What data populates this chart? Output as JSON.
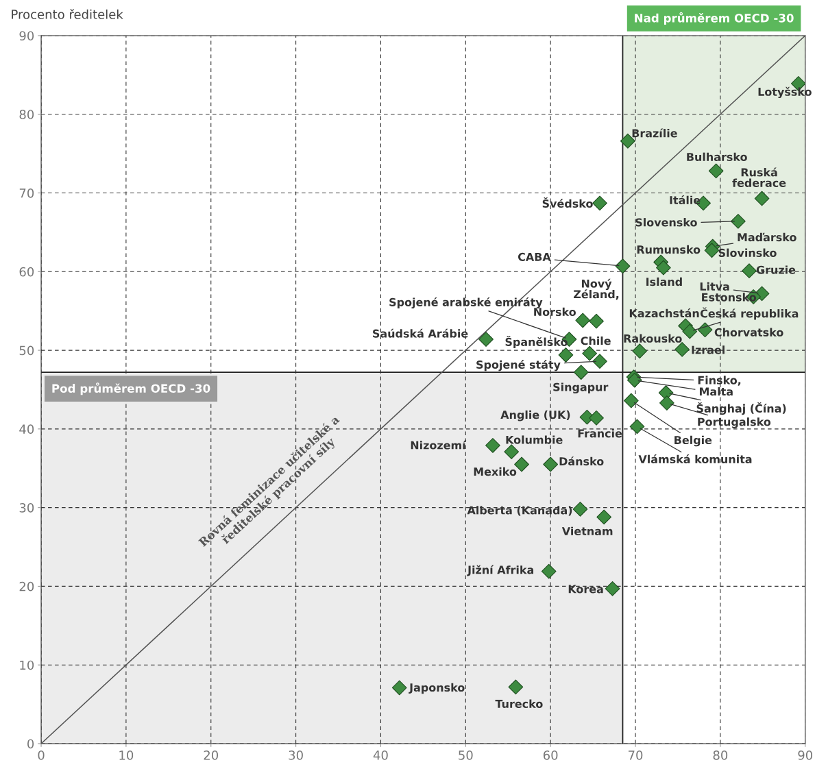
{
  "chart_data": {
    "type": "scatter",
    "ylabel": "Procento ředitelek",
    "xlim": [
      0,
      90
    ],
    "ylim": [
      0,
      90
    ],
    "xticks": [
      0,
      10,
      20,
      30,
      40,
      50,
      60,
      70,
      80,
      90
    ],
    "yticks": [
      0,
      10,
      20,
      30,
      40,
      50,
      60,
      70,
      80,
      90
    ],
    "grid": true,
    "marker": "diamond",
    "ref_lines": [
      {
        "axis": "x",
        "value": 68.5,
        "color": "#222222"
      },
      {
        "axis": "y",
        "value": 47.2,
        "color": "#222222"
      }
    ],
    "bands": [
      {
        "axis": "x",
        "from": 68.5,
        "to": 90,
        "label": "Nad průměrem OECD -30",
        "color": "#e4eee0"
      },
      {
        "axis": "y",
        "from": 0,
        "to": 47.2,
        "label": "Pod průměrem OECD -30",
        "color": "#ececec"
      }
    ],
    "series": [
      {
        "color": "#3d8b40",
        "x": [
          89.2,
          69.1,
          79.5,
          84.9,
          78.0,
          65.8,
          82.1,
          79.1,
          79.0,
          73.0,
          73.3,
          68.5,
          83.4,
          84.9,
          83.9,
          63.8,
          65.4,
          75.9,
          76.4,
          78.2,
          62.2,
          52.4,
          61.8,
          64.6,
          65.8,
          63.6,
          70.5,
          75.5,
          69.8,
          69.9,
          73.6,
          73.7,
          69.5,
          70.2,
          64.3,
          65.4,
          53.2,
          55.4,
          56.6,
          60.0,
          63.5,
          66.3,
          59.8,
          67.3,
          42.2,
          55.9
        ],
        "values": [
          83.9,
          76.6,
          72.8,
          69.3,
          68.7,
          68.7,
          66.4,
          63.2,
          62.7,
          61.2,
          60.5,
          60.7,
          60.1,
          57.2,
          56.8,
          53.8,
          53.7,
          53.1,
          52.4,
          52.6,
          51.4,
          51.4,
          49.4,
          49.6,
          48.6,
          47.2,
          49.9,
          50.1,
          46.6,
          46.2,
          44.6,
          43.3,
          43.6,
          40.3,
          41.5,
          41.4,
          37.9,
          37.1,
          35.5,
          35.5,
          29.8,
          28.8,
          21.9,
          19.7,
          7.1,
          7.2
        ]
      },
      {
        "type": "line",
        "marker": "none",
        "color": "#555555",
        "x": [
          0,
          90
        ],
        "values": [
          0,
          90
        ]
      }
    ],
    "annotations": [
      {
        "text": "Lotyšsko",
        "x": 89.2,
        "y": 83.9
      },
      {
        "text": "Brazílie",
        "x": 69.1,
        "y": 76.6
      },
      {
        "text": "Bulharsko",
        "x": 79.5,
        "y": 72.8
      },
      {
        "text": "Ruská\nfederace",
        "x": 84.9,
        "y": 69.3
      },
      {
        "text": "Itálie",
        "x": 78.0,
        "y": 68.7
      },
      {
        "text": "Švédsko",
        "x": 65.8,
        "y": 68.7
      },
      {
        "text": "Slovensko",
        "x": 82.1,
        "y": 66.4
      },
      {
        "text": "Maďarsko",
        "x": 79.1,
        "y": 63.2
      },
      {
        "text": "Slovinsko",
        "x": 79.0,
        "y": 62.7
      },
      {
        "text": "Rumunsko",
        "x": 73.0,
        "y": 61.2
      },
      {
        "text": "Island",
        "x": 73.3,
        "y": 60.5
      },
      {
        "text": "CABA",
        "x": 68.5,
        "y": 60.7
      },
      {
        "text": "Gruzie",
        "x": 83.4,
        "y": 60.1
      },
      {
        "text": "Litva",
        "x": 84.9,
        "y": 57.2
      },
      {
        "text": "Estonsko",
        "x": 83.9,
        "y": 56.8
      },
      {
        "text": "Norsko",
        "x": 63.8,
        "y": 53.8
      },
      {
        "text": "Nový\nZéland,",
        "x": 65.4,
        "y": 53.7
      },
      {
        "text": "Kazachstán",
        "x": 75.9,
        "y": 53.1
      },
      {
        "text": "Česká republika",
        "x": 76.4,
        "y": 52.4
      },
      {
        "text": "Chorvatsko",
        "x": 78.2,
        "y": 52.6
      },
      {
        "text": "Spojené arabské emiráty",
        "x": 62.2,
        "y": 51.4
      },
      {
        "text": "Saúdská Arábie",
        "x": 52.4,
        "y": 51.4
      },
      {
        "text": "Španělsko",
        "x": 61.8,
        "y": 49.4
      },
      {
        "text": "Chile",
        "x": 64.6,
        "y": 49.6
      },
      {
        "text": "Spojené státy",
        "x": 65.8,
        "y": 48.6
      },
      {
        "text": "Singapur",
        "x": 63.6,
        "y": 47.2
      },
      {
        "text": "Rakousko",
        "x": 70.5,
        "y": 49.9
      },
      {
        "text": "Izrael",
        "x": 75.5,
        "y": 50.1
      },
      {
        "text": "Finsko,",
        "x": 69.8,
        "y": 46.6
      },
      {
        "text": "Malta",
        "x": 69.9,
        "y": 46.2
      },
      {
        "text": "Šanghaj (Čína)",
        "x": 73.6,
        "y": 44.6
      },
      {
        "text": "Portugalsko",
        "x": 73.7,
        "y": 43.3
      },
      {
        "text": "Belgie",
        "x": 69.5,
        "y": 43.6
      },
      {
        "text": "Vlámská komunita",
        "x": 70.2,
        "y": 40.3
      },
      {
        "text": "Anglie (UK)",
        "x": 64.3,
        "y": 41.5
      },
      {
        "text": "Francie",
        "x": 65.4,
        "y": 41.4
      },
      {
        "text": "Nizozemí",
        "x": 53.2,
        "y": 37.9
      },
      {
        "text": "Kolumbie",
        "x": 55.4,
        "y": 37.1
      },
      {
        "text": "Mexiko",
        "x": 56.6,
        "y": 35.5
      },
      {
        "text": "Dánsko",
        "x": 60.0,
        "y": 35.5
      },
      {
        "text": "Alberta (Kanada)",
        "x": 63.5,
        "y": 29.8
      },
      {
        "text": "Vietnam",
        "x": 66.3,
        "y": 28.8
      },
      {
        "text": "Jižní Afrika",
        "x": 59.8,
        "y": 21.9
      },
      {
        "text": "Korea",
        "x": 67.3,
        "y": 19.7
      },
      {
        "text": "Japonsko",
        "x": 42.2,
        "y": 7.1
      },
      {
        "text": "Turecko",
        "x": 55.9,
        "y": 7.2
      },
      "Rovná feminizace učitelské a\nředitelské pracovní síly"
    ]
  }
}
